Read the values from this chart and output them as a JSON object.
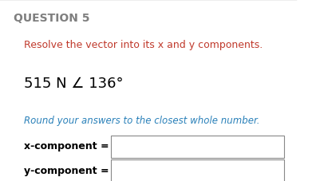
{
  "title": "QUESTION 5",
  "title_color": "#7f7f7f",
  "title_fontsize": 10,
  "subtitle": "Resolve the vector into its x and y components.",
  "subtitle_color": "#c0392b",
  "subtitle_fontsize": 9,
  "vector_text": "515 N ∠ 136°",
  "vector_fontsize": 13,
  "vector_color": "#000000",
  "instruction": "Round your answers to the closest whole number.",
  "instruction_color": "#2980b9",
  "instruction_fontsize": 8.5,
  "label_x": "x-component =",
  "label_y": "y-component =",
  "label_color": "#000000",
  "label_fontsize": 9,
  "background_color": "#ffffff",
  "top_line_color": "#aaaaaa",
  "box_color": "#888888"
}
